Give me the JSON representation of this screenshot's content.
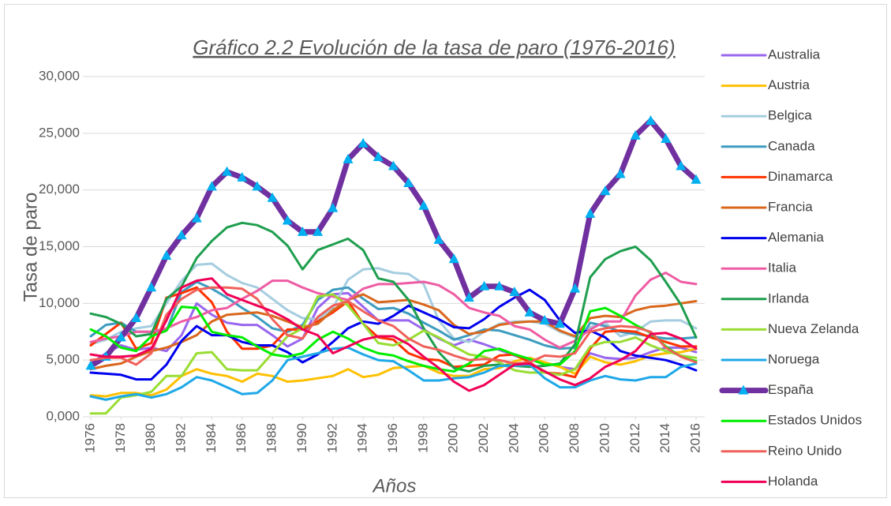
{
  "chart_data": {
    "type": "line",
    "title": "Gráfico 2.2 Evolución de la tasa de paro (1976-2016)",
    "x_label": "Años",
    "y_label": "Tasa de paro",
    "x": [
      1976,
      1977,
      1978,
      1979,
      1980,
      1981,
      1982,
      1983,
      1984,
      1985,
      1986,
      1987,
      1988,
      1989,
      1990,
      1991,
      1992,
      1993,
      1994,
      1995,
      1996,
      1997,
      1998,
      1999,
      2000,
      2001,
      2002,
      2003,
      2004,
      2005,
      2006,
      2007,
      2008,
      2009,
      2010,
      2011,
      2012,
      2013,
      2014,
      2015,
      2016
    ],
    "xlim": [
      1976,
      2016
    ],
    "xticks": [
      1976,
      1978,
      1980,
      1982,
      1984,
      1986,
      1988,
      1990,
      1992,
      1994,
      1996,
      1998,
      2000,
      2002,
      2004,
      2006,
      2008,
      2010,
      2012,
      2014,
      2016
    ],
    "ylim": [
      0,
      30
    ],
    "yticks": [
      {
        "value": 0,
        "label": "0,000"
      },
      {
        "value": 5,
        "label": "5,000"
      },
      {
        "value": 10,
        "label": "10,000"
      },
      {
        "value": 15,
        "label": "15,000"
      },
      {
        "value": 20,
        "label": "20,000"
      },
      {
        "value": 25,
        "label": "25,000"
      },
      {
        "value": 30,
        "label": "30,000"
      }
    ],
    "grid": true,
    "legend": "right",
    "series": [
      {
        "name": "Australia",
        "color": "#9966ee",
        "values": [
          4.7,
          5.6,
          6.3,
          5.9,
          6.1,
          5.8,
          7.2,
          10.0,
          9.0,
          8.3,
          8.1,
          8.1,
          7.2,
          6.2,
          6.9,
          9.6,
          10.8,
          10.9,
          9.7,
          8.5,
          8.5,
          8.5,
          7.7,
          6.9,
          6.3,
          6.8,
          6.4,
          5.9,
          5.4,
          5.0,
          4.8,
          4.4,
          4.2,
          5.6,
          5.2,
          5.1,
          5.2,
          5.7,
          6.1,
          6.1,
          5.7
        ]
      },
      {
        "name": "Austria",
        "color": "#ffc000",
        "values": [
          1.9,
          1.8,
          2.1,
          2.1,
          1.9,
          2.4,
          3.6,
          4.2,
          3.8,
          3.6,
          3.1,
          3.8,
          3.6,
          3.1,
          3.2,
          3.4,
          3.6,
          4.2,
          3.5,
          3.7,
          4.3,
          4.4,
          4.5,
          3.9,
          3.6,
          3.6,
          4.2,
          4.3,
          4.9,
          5.2,
          4.8,
          4.4,
          3.8,
          5.3,
          4.8,
          4.6,
          4.9,
          5.4,
          5.6,
          5.7,
          6.0
        ]
      },
      {
        "name": "Belgica",
        "color": "#a5cde0",
        "values": [
          6.4,
          6.8,
          7.5,
          7.8,
          8.0,
          10.0,
          12.0,
          13.4,
          13.5,
          12.5,
          11.8,
          11.4,
          10.4,
          9.4,
          8.7,
          8.6,
          9.6,
          12.1,
          13.0,
          13.1,
          12.7,
          12.6,
          11.7,
          8.5,
          6.9,
          6.6,
          7.5,
          8.2,
          8.4,
          8.4,
          8.2,
          7.5,
          7.0,
          7.9,
          8.3,
          7.1,
          7.5,
          8.4,
          8.5,
          8.5,
          7.8
        ]
      },
      {
        "name": "Canada",
        "color": "#3d9cc0",
        "values": [
          7.1,
          8.1,
          8.3,
          7.5,
          7.5,
          7.6,
          11.0,
          11.9,
          11.3,
          10.5,
          9.6,
          8.8,
          7.8,
          7.5,
          8.1,
          10.3,
          11.2,
          11.4,
          10.4,
          9.5,
          9.6,
          9.1,
          8.3,
          7.6,
          6.8,
          7.2,
          7.7,
          7.6,
          7.2,
          6.8,
          6.3,
          6.0,
          6.1,
          8.3,
          8.0,
          7.5,
          7.3,
          7.1,
          6.9,
          6.9,
          7.0
        ]
      },
      {
        "name": "Dinamarca",
        "color": "#ff3300",
        "values": [
          6.3,
          7.3,
          8.3,
          6.0,
          6.5,
          10.5,
          10.9,
          11.4,
          10.1,
          7.5,
          6.0,
          6.0,
          6.3,
          7.7,
          7.7,
          8.4,
          9.2,
          10.2,
          8.2,
          7.0,
          6.8,
          5.6,
          5.1,
          5.0,
          4.4,
          4.5,
          4.6,
          5.4,
          5.5,
          4.8,
          3.9,
          3.8,
          3.5,
          6.0,
          7.5,
          7.6,
          7.5,
          7.0,
          6.6,
          6.2,
          6.2
        ]
      },
      {
        "name": "Francia",
        "color": "#d9671c",
        "values": [
          4.2,
          4.5,
          4.7,
          5.3,
          5.8,
          6.1,
          6.6,
          7.2,
          8.4,
          9.0,
          9.1,
          9.2,
          8.9,
          8.4,
          7.9,
          8.2,
          9.4,
          10.3,
          10.8,
          10.1,
          10.2,
          10.3,
          9.9,
          9.4,
          8.1,
          7.3,
          7.5,
          8.1,
          8.3,
          8.4,
          8.4,
          7.6,
          7.1,
          8.7,
          8.9,
          8.8,
          9.4,
          9.7,
          9.8,
          10.0,
          10.2
        ]
      },
      {
        "name": "Alemania",
        "color": "#0000ee",
        "values": [
          3.9,
          3.8,
          3.7,
          3.3,
          3.3,
          4.6,
          6.7,
          8.0,
          7.2,
          7.2,
          6.6,
          6.3,
          6.3,
          5.7,
          4.8,
          5.5,
          6.6,
          7.8,
          8.4,
          8.2,
          8.9,
          9.8,
          9.2,
          8.6,
          7.9,
          7.8,
          8.6,
          9.7,
          10.5,
          11.2,
          10.3,
          8.5,
          7.4,
          7.6,
          7.0,
          5.8,
          5.4,
          5.2,
          5.0,
          4.6,
          4.1
        ]
      },
      {
        "name": "Italia",
        "color": "#ee5ca3",
        "values": [
          6.6,
          6.9,
          7.1,
          7.5,
          7.5,
          7.8,
          8.4,
          8.8,
          9.4,
          9.6,
          10.4,
          11.1,
          12.0,
          12.0,
          11.4,
          10.9,
          10.6,
          10.3,
          11.3,
          11.7,
          11.7,
          11.8,
          11.9,
          11.6,
          10.8,
          9.6,
          9.2,
          8.9,
          8.0,
          7.7,
          6.8,
          6.1,
          6.7,
          7.7,
          8.4,
          8.4,
          10.7,
          12.1,
          12.7,
          11.9,
          11.7
        ]
      },
      {
        "name": "Irlanda",
        "color": "#1e9e4e",
        "values": [
          9.1,
          8.8,
          8.2,
          7.1,
          7.3,
          10.4,
          11.5,
          14.0,
          15.5,
          16.7,
          17.1,
          16.9,
          16.3,
          15.1,
          13.0,
          14.7,
          15.2,
          15.7,
          14.7,
          12.2,
          11.9,
          10.3,
          7.8,
          5.7,
          4.3,
          4.0,
          4.5,
          4.6,
          4.5,
          4.4,
          4.5,
          4.7,
          6.4,
          12.3,
          13.9,
          14.6,
          15.0,
          13.8,
          11.9,
          9.9,
          7.0
        ]
      },
      {
        "name": "Nueva Zelanda",
        "color": "#99dd33",
        "values": [
          0.3,
          0.3,
          1.7,
          1.9,
          2.2,
          3.6,
          3.6,
          5.6,
          5.7,
          4.2,
          4.1,
          4.1,
          5.6,
          7.1,
          7.8,
          10.6,
          10.8,
          9.8,
          8.2,
          6.5,
          6.3,
          6.8,
          7.6,
          7.0,
          6.2,
          5.5,
          5.3,
          4.8,
          4.1,
          3.9,
          3.9,
          3.7,
          4.2,
          6.2,
          6.6,
          6.6,
          7.0,
          6.3,
          5.8,
          5.4,
          5.2
        ]
      },
      {
        "name": "Noruega",
        "color": "#1ea8e8",
        "values": [
          1.8,
          1.5,
          1.8,
          2.0,
          1.7,
          2.0,
          2.6,
          3.5,
          3.2,
          2.6,
          2.0,
          2.1,
          3.2,
          5.0,
          5.3,
          5.6,
          6.0,
          6.1,
          5.5,
          5.0,
          4.9,
          4.1,
          3.2,
          3.2,
          3.4,
          3.5,
          3.9,
          4.5,
          4.5,
          4.6,
          3.4,
          2.6,
          2.6,
          3.2,
          3.6,
          3.3,
          3.2,
          3.5,
          3.5,
          4.4,
          4.7
        ]
      },
      {
        "name": "España",
        "color": "#7030a0",
        "marker": "triangle",
        "marker_color": "#00b0f0",
        "values": [
          4.5,
          5.3,
          7.0,
          8.7,
          11.4,
          14.2,
          16.0,
          17.5,
          20.3,
          21.6,
          21.1,
          20.3,
          19.3,
          17.3,
          16.3,
          16.3,
          18.4,
          22.7,
          24.1,
          22.9,
          22.1,
          20.6,
          18.6,
          15.6,
          13.9,
          10.5,
          11.5,
          11.5,
          11.0,
          9.2,
          8.5,
          8.2,
          11.3,
          17.9,
          19.9,
          21.4,
          24.8,
          26.1,
          24.5,
          22.1,
          20.9
        ]
      },
      {
        "name": "Estados Unidos",
        "color": "#00ee00",
        "values": [
          7.7,
          7.1,
          6.1,
          5.8,
          7.1,
          7.6,
          9.7,
          9.6,
          7.5,
          7.2,
          7.0,
          6.2,
          5.5,
          5.3,
          5.6,
          6.8,
          7.5,
          6.9,
          6.1,
          5.6,
          5.4,
          4.9,
          4.5,
          4.2,
          4.0,
          4.7,
          5.8,
          6.0,
          5.5,
          5.1,
          4.6,
          4.6,
          5.8,
          9.3,
          9.6,
          8.9,
          8.1,
          7.4,
          6.2,
          5.3,
          4.9
        ]
      },
      {
        "name": "Reino Unido",
        "color": "#f0605a",
        "values": [
          5.0,
          5.2,
          5.2,
          4.6,
          5.6,
          9.0,
          10.4,
          11.2,
          11.4,
          11.4,
          11.3,
          10.4,
          8.6,
          7.2,
          6.9,
          8.8,
          9.8,
          10.2,
          9.3,
          8.5,
          8.0,
          6.9,
          6.2,
          5.9,
          5.4,
          5.0,
          5.1,
          5.0,
          4.7,
          4.8,
          5.4,
          5.3,
          5.6,
          7.5,
          7.8,
          8.0,
          7.9,
          7.5,
          6.1,
          5.3,
          4.8
        ]
      },
      {
        "name": "Holanda",
        "color": "#f00055",
        "values": [
          5.5,
          5.3,
          5.3,
          5.4,
          6.0,
          8.5,
          11.4,
          12.0,
          12.2,
          10.8,
          10.3,
          9.8,
          9.3,
          8.6,
          7.7,
          7.2,
          5.6,
          6.2,
          6.8,
          7.1,
          7.1,
          6.4,
          5.3,
          4.3,
          3.1,
          2.3,
          2.8,
          3.7,
          4.6,
          4.7,
          4.0,
          3.3,
          2.8,
          3.4,
          4.4,
          5.0,
          5.8,
          7.3,
          7.4,
          6.9,
          6.0
        ]
      }
    ]
  }
}
